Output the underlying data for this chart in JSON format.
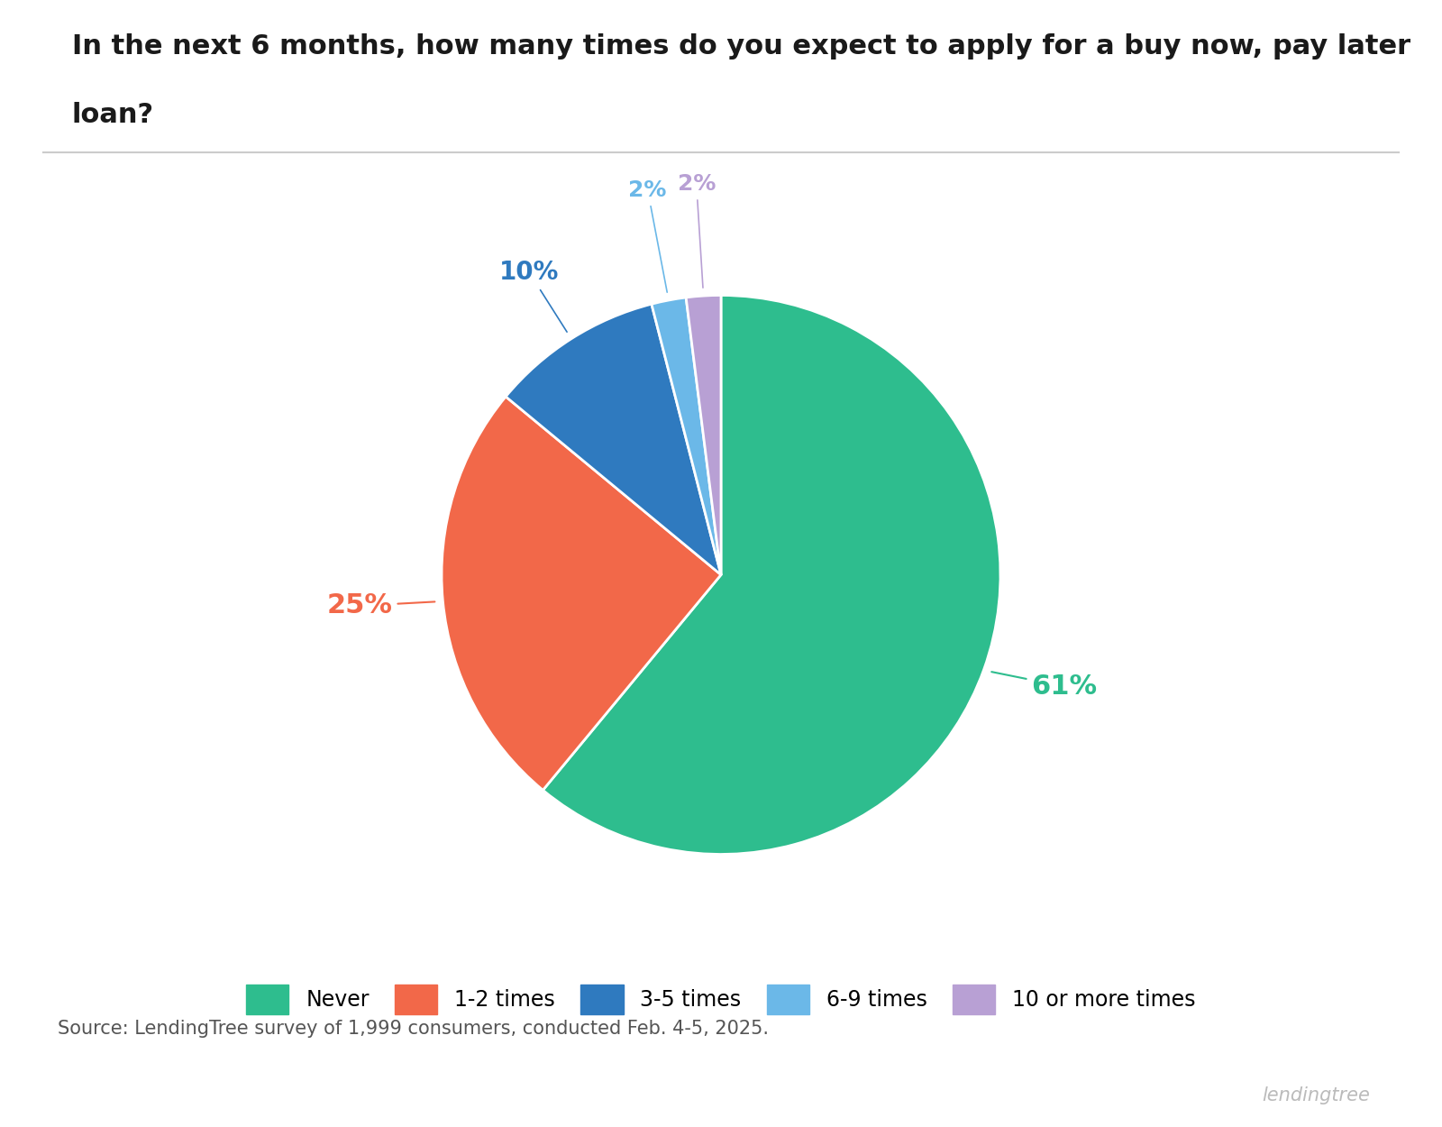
{
  "title_line1": "In the next 6 months, how many times do you expect to apply for a buy now, pay later",
  "title_line2": "loan?",
  "labels": [
    "Never",
    "1-2 times",
    "3-5 times",
    "6-9 times",
    "10 or more times"
  ],
  "values": [
    61,
    25,
    10,
    2,
    2
  ],
  "colors": [
    "#2ebd8e",
    "#f26849",
    "#2f7abf",
    "#6bb8e8",
    "#b8a0d4"
  ],
  "label_colors": [
    "#2ebd8e",
    "#f26849",
    "#2f7abf",
    "#6bb8e8",
    "#b8a0d4"
  ],
  "pct_labels": [
    "61%",
    "25%",
    "10%",
    "2%",
    "2%"
  ],
  "source_text": "Source: LendingTree survey of 1,999 consumers, conducted Feb. 4-5, 2025.",
  "background_color": "#ffffff",
  "startangle": 90,
  "legend_labels": [
    "Never",
    "1-2 times",
    "3-5 times",
    "6-9 times",
    "10 or more times"
  ]
}
